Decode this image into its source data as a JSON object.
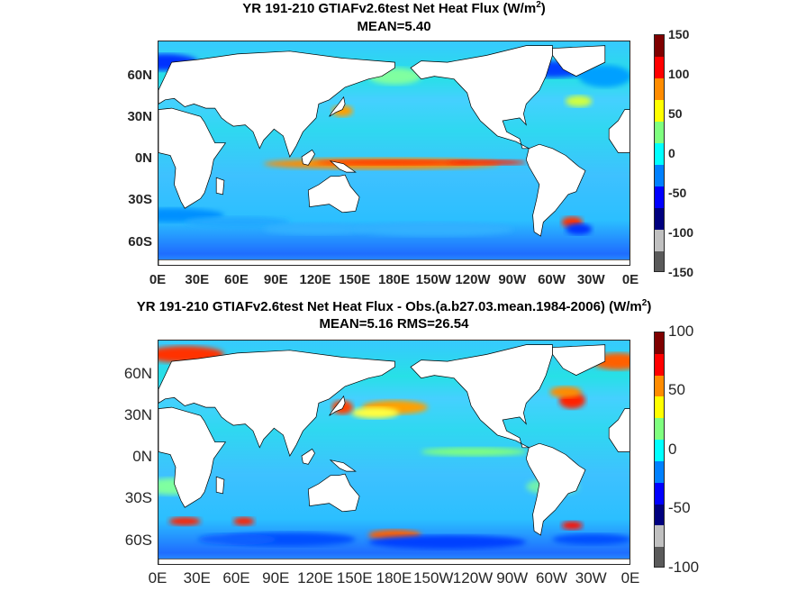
{
  "panels": [
    {
      "title": "YR 191-210 GTIAFv2.6test  Net Heat Flux (W/m",
      "title_sup": "2",
      "title_end": ")",
      "subtitle": "MEAN=5.40",
      "y_ticks": [
        "60N",
        "30N",
        "0N",
        "30S",
        "60S"
      ],
      "x_ticks": [
        "0E",
        "30E",
        "60E",
        "90E",
        "120E",
        "150E",
        "180E",
        "150W",
        "120W",
        "90W",
        "60W",
        "30W",
        "0E"
      ],
      "colorbar_ticks": [
        "150",
        "100",
        "50",
        "0",
        "-50",
        "-100",
        "-150"
      ]
    },
    {
      "title": "YR 191-210 GTIAFv2.6test  Net Heat Flux - Obs.(a.b27.03.mean.1984-2006) (W/m",
      "title_sup": "2",
      "title_end": ")",
      "subtitle": "MEAN=5.16 RMS=26.54",
      "y_ticks": [
        "60N",
        "30N",
        "0N",
        "30S",
        "60S"
      ],
      "x_ticks": [
        "0E",
        "30E",
        "60E",
        "90E",
        "120E",
        "150E",
        "180E",
        "150W",
        "120W",
        "90W",
        "60W",
        "30W",
        "0E"
      ],
      "colorbar_ticks": [
        "100",
        "50",
        "0",
        "-50",
        "-100"
      ]
    }
  ],
  "chart_data": [
    {
      "type": "heatmap",
      "title": "YR 191-210 GTIAFv2.6test  Net Heat Flux (W/m2)",
      "subtitle": "MEAN=5.40",
      "field": "Net Heat Flux",
      "units": "W/m2",
      "mean": 5.4,
      "x_ticks": [
        "0E",
        "30E",
        "60E",
        "90E",
        "120E",
        "150E",
        "180E",
        "150W",
        "120W",
        "90W",
        "60W",
        "30W",
        "0E"
      ],
      "y_ticks": [
        "60N",
        "30N",
        "0N",
        "30S",
        "60S"
      ],
      "color_range": [
        -150,
        150
      ],
      "colorbar_ticks": [
        150,
        100,
        50,
        0,
        -50,
        -100,
        -150
      ],
      "colormap": [
        "#7f0000",
        "#ff0000",
        "#ff8c00",
        "#ffff00",
        "#7fff7f",
        "#00ffff",
        "#0080ff",
        "#0000ff",
        "#00007f",
        "#c0c0c0",
        "#5a5a5a"
      ]
    },
    {
      "type": "heatmap",
      "title": "YR 191-210 GTIAFv2.6test  Net Heat Flux - Obs.(a.b27.03.mean.1984-2006) (W/m2)",
      "subtitle": "MEAN=5.16 RMS=26.54",
      "field": "Net Heat Flux - Obs.",
      "units": "W/m2",
      "mean": 5.16,
      "rms": 26.54,
      "x_ticks": [
        "0E",
        "30E",
        "60E",
        "90E",
        "120E",
        "150E",
        "180E",
        "150W",
        "120W",
        "90W",
        "60W",
        "30W",
        "0E"
      ],
      "y_ticks": [
        "60N",
        "30N",
        "0N",
        "30S",
        "60S"
      ],
      "color_range": [
        -100,
        100
      ],
      "colorbar_ticks": [
        100,
        50,
        0,
        -50,
        -100
      ],
      "colormap": [
        "#7f0000",
        "#ff0000",
        "#ff8c00",
        "#ffff00",
        "#7fff7f",
        "#00ffff",
        "#0080ff",
        "#0000ff",
        "#00007f",
        "#c0c0c0",
        "#5a5a5a"
      ]
    }
  ]
}
